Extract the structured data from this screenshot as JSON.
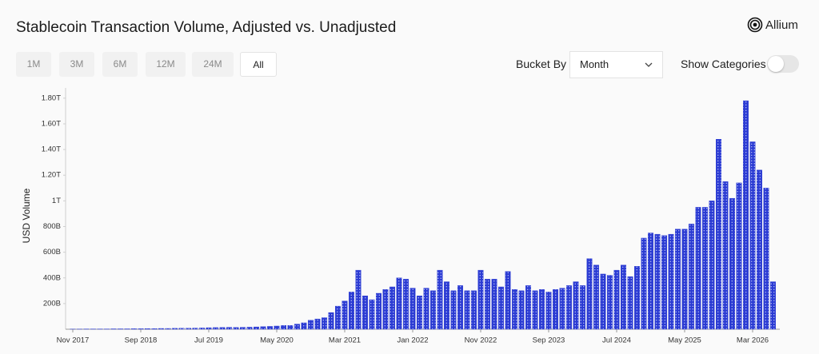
{
  "header": {
    "brand": "Allium"
  },
  "controls": {
    "ranges": [
      "1M",
      "3M",
      "6M",
      "12M",
      "24M",
      "All"
    ],
    "bucket_label": "Bucket By",
    "bucket_value": "Month",
    "toggle_label": "Show Categories"
  },
  "chart_data": {
    "type": "bar",
    "title": "Stablecoin Transaction Volume, Adjusted vs. Unadjusted",
    "y_label": "USD Volume",
    "categories": [
      "Nov 2017",
      null,
      null,
      null,
      null,
      null,
      null,
      null,
      null,
      null,
      "Sep 2018",
      null,
      null,
      null,
      null,
      null,
      null,
      null,
      null,
      null,
      "Jul 2019",
      null,
      null,
      null,
      null,
      null,
      null,
      null,
      null,
      null,
      "May 2020",
      null,
      null,
      null,
      null,
      null,
      null,
      null,
      null,
      null,
      "Mar 2021",
      null,
      null,
      null,
      null,
      null,
      null,
      null,
      null,
      null,
      "Jan 2022",
      null,
      null,
      null,
      null,
      null,
      null,
      null,
      null,
      null,
      "Nov 2022",
      null,
      null,
      null,
      null,
      null,
      null,
      null,
      null,
      null,
      "Sep 2023",
      null,
      null,
      null,
      null,
      null,
      null,
      null,
      null,
      null,
      "Jul 2024",
      null,
      null,
      null,
      null,
      null,
      null,
      null,
      null,
      null,
      "May 2025",
      null,
      null,
      null,
      null,
      null,
      null,
      null,
      null,
      null,
      "Mar 2026",
      null,
      null,
      null
    ],
    "values": [
      1,
      1,
      2,
      2,
      2,
      2,
      3,
      3,
      3,
      4,
      4,
      5,
      5,
      6,
      6,
      7,
      8,
      8,
      9,
      10,
      12,
      13,
      14,
      15,
      14,
      15,
      16,
      18,
      20,
      22,
      25,
      30,
      30,
      40,
      50,
      70,
      80,
      90,
      130,
      180,
      220,
      290,
      460,
      260,
      230,
      280,
      310,
      330,
      400,
      390,
      320,
      260,
      320,
      300,
      460,
      370,
      300,
      340,
      300,
      300,
      460,
      390,
      390,
      330,
      450,
      310,
      300,
      340,
      300,
      310,
      290,
      310,
      320,
      340,
      370,
      340,
      550,
      500,
      430,
      420,
      460,
      500,
      410,
      490,
      710,
      750,
      740,
      730,
      740,
      780,
      780,
      820,
      950,
      950,
      1000,
      1480,
      1150,
      1020,
      1140,
      1780,
      1460,
      1240,
      1100,
      370
    ],
    "color": "#2b3bd3",
    "ylim": [
      0,
      1880
    ],
    "yticks": [
      {
        "value": 200,
        "label": "200B"
      },
      {
        "value": 400,
        "label": "400B"
      },
      {
        "value": 600,
        "label": "600B"
      },
      {
        "value": 800,
        "label": "800B"
      },
      {
        "value": 1000,
        "label": "1T"
      },
      {
        "value": 1200,
        "label": "1.20T"
      },
      {
        "value": 1400,
        "label": "1.40T"
      },
      {
        "value": 1600,
        "label": "1.60T"
      },
      {
        "value": 1800,
        "label": "1.80T"
      }
    ],
    "grid": false
  }
}
